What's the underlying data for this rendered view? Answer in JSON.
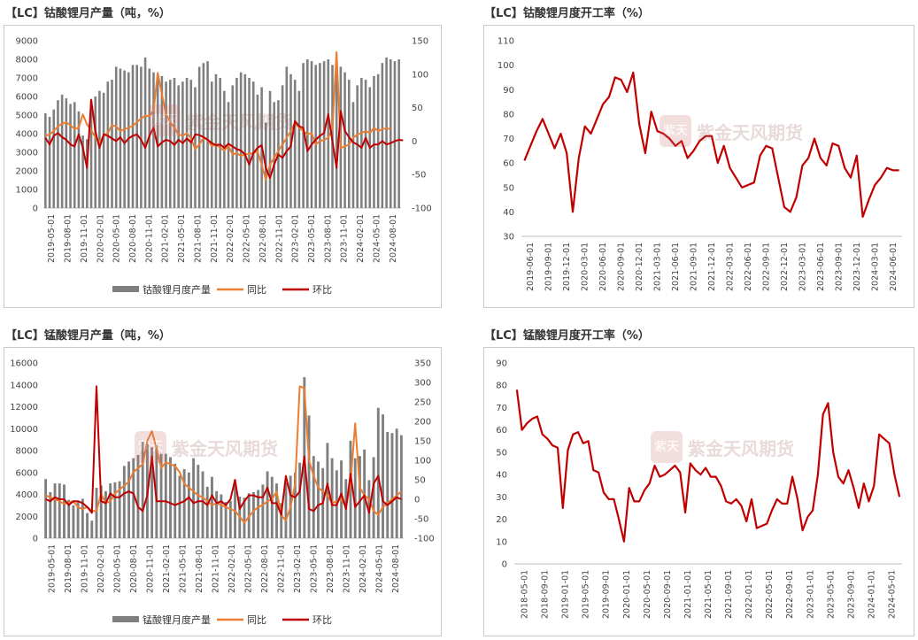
{
  "panels": [
    {
      "id": "p1",
      "title": "【LC】钴酸锂月产量（吨，%）",
      "chart_data": {
        "type": "bar",
        "x_start": "2019-05",
        "tick_labels": [
          "2019-05-01",
          "2019-08-01",
          "2019-11-01",
          "2020-02-01",
          "2020-05-01",
          "2020-08-01",
          "2020-11-01",
          "2021-02-01",
          "2021-05-01",
          "2021-08-01",
          "2021-11-01",
          "2022-02-01",
          "2022-05-01",
          "2022-08-01",
          "2022-11-01",
          "2023-02-01",
          "2023-05-01",
          "2023-08-01",
          "2023-11-01",
          "2024-02-01",
          "2024-05-01",
          "2024-08-01"
        ],
        "ylim_left": [
          0,
          9000
        ],
        "yticks_left": [
          "9000",
          "8000",
          "7000",
          "6000",
          "5000",
          "4000",
          "3000",
          "2000",
          "1000",
          "0"
        ],
        "ylim_right": [
          -100,
          150
        ],
        "yticks_right": [
          "150",
          "100",
          "50",
          "0",
          "-50",
          "-100"
        ],
        "legend": [
          "钴酸锂月度产量",
          "同比",
          "环比"
        ],
        "series": [
          {
            "name": "钴酸锂月度产量",
            "axis": "left",
            "kind": "bar",
            "color": "#7f7f7f",
            "values": [
              5100,
              4900,
              5300,
              5800,
              6100,
              5900,
              5600,
              5700,
              5200,
              3900,
              3700,
              5800,
              6000,
              6300,
              6200,
              6800,
              6900,
              7600,
              7500,
              7400,
              7300,
              7700,
              7700,
              7600,
              8100,
              7500,
              7300,
              7200,
              7100,
              6800,
              6900,
              7000,
              6600,
              6800,
              7000,
              6900,
              6500,
              7600,
              7800,
              7900,
              6800,
              7200,
              7000,
              6300,
              5700,
              6600,
              7000,
              7300,
              7200,
              7000,
              6800,
              6100,
              6500,
              4600,
              6300,
              5700,
              5800,
              6600,
              7600,
              7200,
              6900,
              6300,
              7800,
              8000,
              7900,
              7700,
              7800,
              7900,
              8000,
              7700,
              7500,
              7600,
              7300,
              6900,
              5700,
              6600,
              7000,
              6900,
              6500,
              7100,
              7200,
              7800,
              8100,
              8000,
              7900,
              8000
            ]
          },
          {
            "name": "同比",
            "axis": "right",
            "kind": "line",
            "color": "#ed7d31",
            "values": [
              8,
              10,
              15,
              22,
              26,
              28,
              24,
              18,
              20,
              40,
              25,
              16,
              6,
              -2,
              8,
              12,
              24,
              22,
              15,
              18,
              20,
              23,
              28,
              34,
              38,
              37,
              46,
              102,
              70,
              40,
              28,
              20,
              10,
              8,
              12,
              4,
              -12,
              -5,
              5,
              2,
              -8,
              -5,
              -10,
              -14,
              -7,
              -20,
              -18,
              -22,
              -20,
              -19,
              -18,
              -15,
              -35,
              -58,
              -35,
              -25,
              -15,
              -5,
              5,
              15,
              28,
              20,
              15,
              10,
              12,
              -5,
              0,
              2,
              5,
              18,
              133,
              -10,
              -8,
              -5,
              5,
              10,
              12,
              15,
              12,
              20,
              15,
              18,
              19,
              18
            ]
          },
          {
            "name": "环比",
            "axis": "right",
            "kind": "line",
            "color": "#c00000",
            "values": [
              5,
              -5,
              8,
              12,
              6,
              2,
              -5,
              -8,
              10,
              -10,
              -40,
              62,
              15,
              -10,
              10,
              8,
              4,
              0,
              6,
              -3,
              4,
              8,
              10,
              2,
              -10,
              8,
              20,
              -8,
              -2,
              2,
              0,
              -6,
              2,
              -3,
              4,
              -2,
              10,
              9,
              6,
              2,
              -3,
              -6,
              -5,
              -10,
              -4,
              -8,
              -12,
              -14,
              -20,
              -35,
              -18,
              -10,
              -6,
              -40,
              -55,
              -35,
              -20,
              -25,
              -15,
              -8,
              30,
              22,
              20,
              -15,
              -5,
              2,
              8,
              12,
              40,
              0,
              -40,
              45,
              15,
              6,
              -2,
              -5,
              -10,
              5,
              -10,
              -5,
              -5,
              0,
              -5,
              -3,
              0,
              2,
              1
            ]
          }
        ]
      }
    },
    {
      "id": "p2",
      "title": "【LC】钴酸锂月度开工率（%）",
      "chart_data": {
        "type": "line",
        "x_start": "2019-06",
        "tick_labels": [
          "2019-06-01",
          "2019-09-01",
          "2019-12-01",
          "2020-03-01",
          "2020-06-01",
          "2020-09-01",
          "2020-12-01",
          "2021-03-01",
          "2021-06-01",
          "2021-09-01",
          "2021-12-01",
          "2022-03-01",
          "2022-06-01",
          "2022-09-01",
          "2022-12-01",
          "2023-03-01",
          "2023-06-01",
          "2023-09-01",
          "2023-12-01",
          "2024-03-01",
          "2024-06-01"
        ],
        "ylim": [
          30,
          110
        ],
        "yticks": [
          "110",
          "100",
          "90",
          "80",
          "70",
          "60",
          "50",
          "40",
          "30"
        ],
        "series": [
          {
            "name": "开工率",
            "color": "#c00000",
            "values": [
              61,
              67,
              73,
              78,
              72,
              66,
              72,
              64,
              40,
              62,
              75,
              72,
              78,
              84,
              87,
              95,
              94,
              89,
              97,
              76,
              64,
              81,
              73,
              72,
              70,
              67,
              69,
              62,
              65,
              69,
              71,
              71,
              60,
              67,
              58,
              54,
              50,
              51,
              52,
              63,
              67,
              66,
              54,
              42,
              40,
              46,
              59,
              62,
              70,
              62,
              59,
              68,
              67,
              58,
              54,
              63,
              38,
              45,
              51,
              54,
              58,
              57,
              57
            ]
          }
        ]
      }
    },
    {
      "id": "p3",
      "title": "【LC】锰酸锂月产量（吨，%）",
      "chart_data": {
        "type": "bar",
        "x_start": "2019-05",
        "tick_labels": [
          "2019-05-01",
          "2019-08-01",
          "2019-11-01",
          "2020-02-01",
          "2020-05-01",
          "2020-08-01",
          "2020-11-01",
          "2021-02-01",
          "2021-05-01",
          "2021-08-01",
          "2021-11-01",
          "2022-02-01",
          "2022-05-01",
          "2022-08-01",
          "2022-11-01",
          "2023-02-01",
          "2023-05-01",
          "2023-08-01",
          "2023-11-01",
          "2024-02-01",
          "2024-05-01",
          "2024-08-01"
        ],
        "ylim_left": [
          0,
          16000
        ],
        "yticks_left": [
          "16000",
          "14000",
          "12000",
          "10000",
          "8000",
          "6000",
          "4000",
          "2000",
          "0"
        ],
        "ylim_right": [
          -100,
          350
        ],
        "yticks_right": [
          "350",
          "300",
          "250",
          "200",
          "150",
          "100",
          "50",
          "0",
          "-50",
          "-100"
        ],
        "legend": [
          "锰酸锂月度产量",
          "同比",
          "环比"
        ],
        "series": [
          {
            "name": "锰酸锂月度产量",
            "axis": "left",
            "kind": "bar",
            "color": "#7f7f7f",
            "values": [
              5400,
              4200,
              5000,
              5000,
              4900,
              3500,
              3000,
              3300,
              3600,
              2300,
              1600,
              4600,
              4800,
              4300,
              5000,
              5100,
              5200,
              6600,
              7000,
              7300,
              7600,
              8800,
              8600,
              8300,
              8500,
              7700,
              7700,
              7400,
              6800,
              5700,
              6300,
              6000,
              7300,
              6700,
              6100,
              4700,
              5600,
              4300,
              4000,
              3300,
              3400,
              5100,
              3800,
              3700,
              4100,
              4200,
              4400,
              4900,
              6100,
              5600,
              5000,
              3200,
              5100,
              5700,
              6000,
              6900,
              14700,
              11200,
              7500,
              7000,
              6400,
              8700,
              7300,
              6200,
              7100,
              5400,
              8900,
              7300,
              7500,
              8100,
              5300,
              7400,
              11900,
              11300,
              9700,
              9600,
              10000,
              9400
            ]
          },
          {
            "name": "同比",
            "axis": "right",
            "kind": "line",
            "color": "#ed7d31",
            "values": [
              10,
              5,
              0,
              -5,
              -12,
              -8,
              -5,
              -20,
              -25,
              -20,
              -30,
              -30,
              15,
              -10,
              -5,
              15,
              25,
              35,
              45,
              70,
              80,
              90,
              150,
              175,
              130,
              80,
              95,
              90,
              85,
              70,
              40,
              30,
              20,
              10,
              5,
              -5,
              -15,
              -10,
              -15,
              -20,
              -25,
              -30,
              -45,
              -60,
              -45,
              -30,
              -20,
              -15,
              -5,
              0,
              20,
              -40,
              -55,
              -20,
              40,
              290,
              285,
              100,
              60,
              30,
              20,
              10,
              -10,
              -5,
              0,
              -20,
              40,
              195,
              30,
              10,
              0,
              -30,
              -40,
              -20,
              -10,
              0,
              10,
              20
            ]
          },
          {
            "name": "环比",
            "axis": "right",
            "kind": "line",
            "color": "#c00000",
            "values": [
              0,
              -5,
              5,
              0,
              0,
              -15,
              -5,
              -5,
              -10,
              -20,
              -35,
              290,
              -5,
              -10,
              15,
              5,
              5,
              15,
              20,
              15,
              -20,
              -30,
              10,
              110,
              -5,
              -5,
              -5,
              -10,
              -15,
              -10,
              -5,
              5,
              -10,
              -5,
              -5,
              -15,
              10,
              -10,
              -5,
              -15,
              0,
              50,
              -25,
              -5,
              10,
              10,
              5,
              5,
              30,
              -10,
              -10,
              -40,
              60,
              10,
              5,
              20,
              110,
              -25,
              -30,
              -15,
              -10,
              40,
              -15,
              -15,
              15,
              -25,
              65,
              -20,
              -5,
              10,
              -35,
              40,
              60,
              -5,
              -15,
              -5,
              5,
              0
            ]
          }
        ]
      }
    },
    {
      "id": "p4",
      "title": "【LC】锰酸锂月度开工率（%）",
      "chart_data": {
        "type": "line",
        "x_start": "2018-05",
        "tick_labels": [
          "2018-05-01",
          "2018-09-01",
          "2019-01-01",
          "2019-05-01",
          "2019-09-01",
          "2020-01-01",
          "2020-05-01",
          "2020-09-01",
          "2021-01-01",
          "2021-05-01",
          "2021-09-01",
          "2022-01-01",
          "2022-05-01",
          "2022-09-01",
          "2023-01-01",
          "2023-05-01",
          "2023-09-01",
          "2024-01-01",
          "2024-05-01"
        ],
        "ylim": [
          0,
          90
        ],
        "yticks": [
          "90",
          "80",
          "70",
          "60",
          "50",
          "40",
          "30",
          "20",
          "10",
          "0"
        ],
        "series": [
          {
            "name": "开工率",
            "color": "#c00000",
            "values": [
              78,
              60,
              63,
              65,
              66,
              58,
              56,
              53,
              52,
              25,
              51,
              58,
              59,
              54,
              55,
              42,
              41,
              32,
              29,
              29,
              20,
              10,
              34,
              28,
              28,
              33,
              36,
              44,
              39,
              40,
              42,
              44,
              41,
              23,
              45,
              42,
              40,
              43,
              39,
              39,
              35,
              28,
              27,
              29,
              26,
              19,
              29,
              16,
              17,
              18,
              24,
              29,
              27,
              27,
              39,
              29,
              15,
              21,
              24,
              40,
              67,
              72,
              50,
              39,
              36,
              42,
              34,
              25,
              36,
              28,
              35,
              58,
              56,
              54,
              40,
              30
            ]
          }
        ]
      }
    }
  ],
  "watermark": {
    "text": "紫金天风期货",
    "logo": "紫天"
  }
}
